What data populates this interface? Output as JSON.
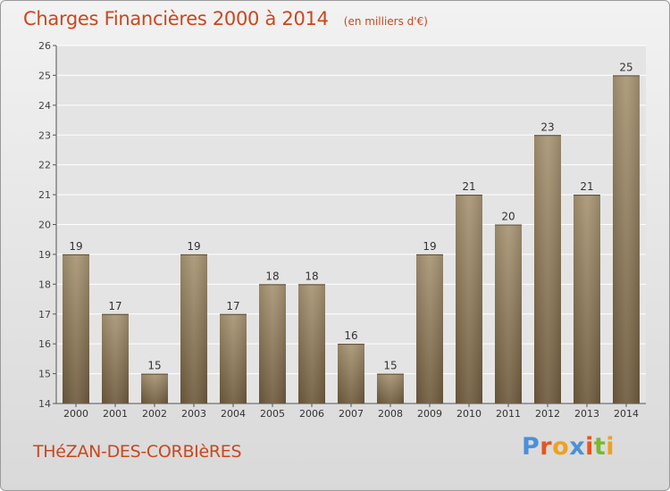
{
  "header": {
    "title": "Charges Financières 2000 à 2014",
    "unit": "(en milliers d'€)"
  },
  "footer": {
    "place": "THéZAN-DES-CORBIèRES",
    "logo": "Proxiti",
    "logo_colors": [
      "#4a90d9",
      "#e8541e",
      "#f0a020",
      "#4a90d9",
      "#e8541e",
      "#7ab82e",
      "#f0a020"
    ]
  },
  "colors": {
    "bar_top": "#a89574",
    "bar_bottom": "#6f5b3e",
    "title": "#c8481e",
    "axis": "#555555",
    "grid": "#ffffff"
  },
  "chart_data": {
    "type": "bar",
    "title": "Charges Financières 2000 à 2014",
    "subtitle": "(en milliers d'€)",
    "categories": [
      "2000",
      "2001",
      "2002",
      "2003",
      "2004",
      "2005",
      "2006",
      "2007",
      "2008",
      "2009",
      "2010",
      "2011",
      "2012",
      "2013",
      "2014"
    ],
    "values": [
      19,
      17,
      15,
      19,
      17,
      18,
      18,
      16,
      15,
      19,
      21,
      20,
      23,
      21,
      25
    ],
    "ylim": [
      14,
      26
    ],
    "yticks": [
      14,
      15,
      16,
      17,
      18,
      19,
      20,
      21,
      22,
      23,
      24,
      25,
      26
    ],
    "grid": true,
    "data_labels": true
  }
}
